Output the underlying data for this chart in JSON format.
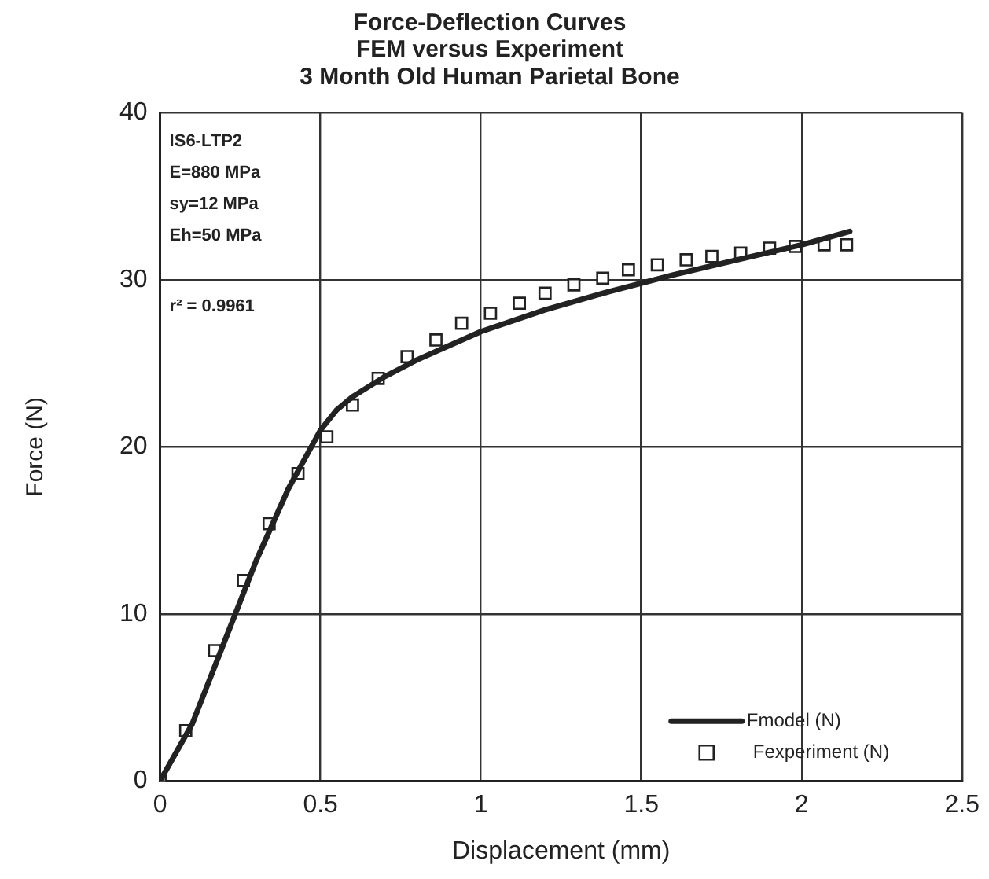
{
  "chart_data": {
    "type": "line",
    "title": "Force-Deflection Curves\nFEM versus Experiment\n3 Month Old Human Parietal Bone",
    "xlabel": "Displacement (mm)",
    "ylabel": "Force (N)",
    "xlim": [
      0,
      2.5
    ],
    "xticks": [
      0,
      0.5,
      1,
      1.5,
      2,
      2.5
    ],
    "ylim": [
      0,
      40
    ],
    "yticks": [
      0,
      10,
      20,
      30,
      40
    ],
    "grid": true,
    "legend": "bottom right",
    "annotations": [
      "IS6-LTP2",
      "E=880 MPa",
      "sy=12 MPa",
      "Eh=50 MPa",
      "r² = 0.9961"
    ],
    "series": [
      {
        "name": "Fmodel (N)",
        "type": "line",
        "color": "#222222",
        "marker": "none",
        "x": [
          0,
          0.1,
          0.2,
          0.3,
          0.4,
          0.5,
          0.55,
          0.6,
          0.7,
          0.8,
          1.0,
          1.2,
          1.4,
          1.6,
          1.8,
          2.0,
          2.15
        ],
        "values": [
          0,
          3.4,
          8.3,
          13.2,
          17.5,
          21.0,
          22.2,
          23.0,
          24.2,
          25.2,
          26.9,
          28.2,
          29.3,
          30.3,
          31.2,
          32.1,
          32.9
        ]
      },
      {
        "name": "Fexperiment (N)",
        "type": "scatter",
        "color": "#222222",
        "marker": "square",
        "x": [
          0,
          0.08,
          0.17,
          0.26,
          0.34,
          0.43,
          0.52,
          0.6,
          0.68,
          0.77,
          0.86,
          0.94,
          1.03,
          1.12,
          1.2,
          1.29,
          1.38,
          1.46,
          1.55,
          1.64,
          1.72,
          1.81,
          1.9,
          1.98,
          2.07,
          2.14
        ],
        "values": [
          0,
          3.0,
          7.8,
          12.0,
          15.4,
          18.4,
          20.6,
          22.5,
          24.1,
          25.4,
          26.4,
          27.4,
          28.0,
          28.6,
          29.2,
          29.7,
          30.1,
          30.6,
          30.9,
          31.2,
          31.4,
          31.6,
          31.9,
          32.0,
          32.1,
          32.1
        ]
      }
    ]
  }
}
